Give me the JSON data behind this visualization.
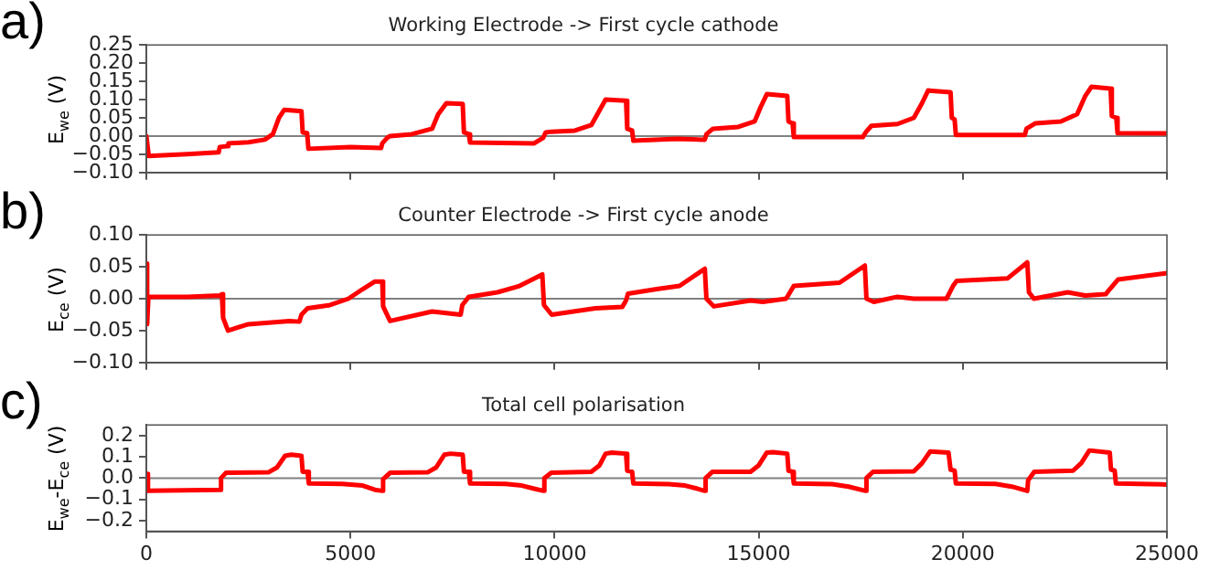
{
  "chart_data": [
    {
      "type": "line",
      "title": "Working Electrode -> First cycle cathode",
      "ylabel": "E$_{we}$ (V)",
      "annotations": [
        "a)"
      ],
      "grid": false,
      "legend": false,
      "marker": "none",
      "tick_labels": "y",
      "xlim": [
        0,
        25000
      ],
      "xticks": [
        0,
        5000,
        10000,
        15000,
        20000,
        25000
      ],
      "ylim": [
        -0.1,
        0.25
      ],
      "yticks": [
        {
          "value": -0.1,
          "label": "−0.10"
        },
        {
          "value": -0.05,
          "label": "−0.05"
        },
        {
          "value": 0,
          "label": "0.00"
        },
        {
          "value": 0.05,
          "label": "0.05"
        },
        {
          "value": 0.1,
          "label": "0.10"
        },
        {
          "value": 0.15,
          "label": "0.15"
        },
        {
          "value": 0.2,
          "label": "0.20"
        },
        {
          "value": 0.25,
          "label": "0.25"
        }
      ],
      "ref_lines": [
        {
          "axis": "y",
          "value": 0,
          "color": "#808080"
        }
      ],
      "x": [
        0,
        60,
        1000,
        1770,
        1800,
        1980,
        2010,
        2500,
        2900,
        3100,
        3250,
        3380,
        3600,
        3800,
        3830,
        3940,
        3970,
        5000,
        5750,
        5780,
        5900,
        5970,
        6500,
        7000,
        7150,
        7350,
        7750,
        7780,
        7900,
        7930,
        9500,
        9720,
        9780,
        9930,
        10500,
        10900,
        11100,
        11250,
        11750,
        11780,
        11900,
        11930,
        13000,
        13680,
        13720,
        13880,
        14500,
        14900,
        15050,
        15200,
        15700,
        15730,
        15830,
        15860,
        17550,
        17620,
        17760,
        18400,
        18800,
        19000,
        19150,
        19700,
        19730,
        19800,
        19830,
        21520,
        21560,
        21780,
        22400,
        22800,
        23000,
        23150,
        23620,
        23650,
        23760,
        23790,
        25000
      ],
      "series": [
        {
          "color": "#ff0000",
          "values": [
            0,
            -0.055,
            -0.05,
            -0.045,
            -0.03,
            -0.028,
            -0.02,
            -0.017,
            -0.01,
            0.005,
            0.05,
            0.072,
            0.07,
            0.068,
            0.01,
            0.008,
            -0.035,
            -0.03,
            -0.033,
            -0.02,
            -0.005,
            0,
            0.005,
            0.02,
            0.06,
            0.09,
            0.088,
            0.01,
            0.005,
            -0.018,
            -0.02,
            -0.005,
            0.01,
            0.012,
            0.015,
            0.03,
            0.07,
            0.1,
            0.097,
            0.02,
            0.015,
            -0.013,
            -0.008,
            -0.01,
            0.005,
            0.02,
            0.025,
            0.04,
            0.08,
            0.115,
            0.11,
            0.04,
            0.035,
            -0.003,
            -0.003,
            0.01,
            0.028,
            0.033,
            0.05,
            0.09,
            0.125,
            0.12,
            0.05,
            0.045,
            0.003,
            0.003,
            0.02,
            0.035,
            0.04,
            0.06,
            0.11,
            0.135,
            0.13,
            0.055,
            0.05,
            0.008,
            0.007
          ]
        }
      ]
    },
    {
      "type": "line",
      "title": "Counter Electrode -> First cycle anode",
      "ylabel": "E$_{ce}$ (V)",
      "annotations": [
        "b)"
      ],
      "grid": false,
      "legend": false,
      "marker": "none",
      "tick_labels": "y",
      "xlim": [
        0,
        25000
      ],
      "xticks": [
        0,
        5000,
        10000,
        15000,
        20000,
        25000
      ],
      "ylim": [
        -0.1,
        0.1
      ],
      "yticks": [
        {
          "value": -0.1,
          "label": "−0.10"
        },
        {
          "value": -0.05,
          "label": "−0.05"
        },
        {
          "value": 0,
          "label": "0.00"
        },
        {
          "value": 0.05,
          "label": "0.05"
        },
        {
          "value": 0.1,
          "label": "0.10"
        }
      ],
      "ref_lines": [
        {
          "axis": "y",
          "value": 0,
          "color": "#808080"
        }
      ],
      "x": [
        0,
        20,
        50,
        1000,
        1800,
        1850,
        1880,
        2000,
        2500,
        3500,
        3750,
        3800,
        3950,
        4500,
        4950,
        5300,
        5600,
        5780,
        5800,
        5970,
        7000,
        7700,
        7740,
        7900,
        8600,
        9140,
        9700,
        9740,
        9930,
        11000,
        11660,
        11750,
        11800,
        12500,
        13060,
        13680,
        13720,
        13900,
        14800,
        15100,
        15670,
        15720,
        15860,
        16980,
        17600,
        17640,
        17820,
        18400,
        18800,
        19600,
        19680,
        19760,
        19850,
        21100,
        21580,
        21620,
        21740,
        22570,
        23000,
        23500,
        23600,
        23800,
        25000
      ],
      "series": [
        {
          "color": "#ff0000",
          "values": [
            0.055,
            -0.04,
            0.003,
            0.003,
            0.005,
            0.007,
            -0.03,
            -0.05,
            -0.04,
            -0.035,
            -0.036,
            -0.025,
            -0.015,
            -0.01,
            0,
            0.015,
            0.027,
            0.027,
            -0.012,
            -0.035,
            -0.02,
            -0.025,
            -0.01,
            0.003,
            0.01,
            0.02,
            0.038,
            -0.01,
            -0.025,
            -0.015,
            -0.013,
            -0.003,
            0.008,
            0.015,
            0.02,
            0.047,
            0,
            -0.012,
            -0.003,
            -0.005,
            0,
            0.005,
            0.02,
            0.025,
            0.052,
            0,
            -0.005,
            0.003,
            0,
            0,
            0.01,
            0.02,
            0.028,
            0.032,
            0.057,
            0.01,
            0,
            0.01,
            0.005,
            0.007,
            0.015,
            0.03,
            0.04
          ]
        }
      ]
    },
    {
      "type": "line",
      "title": "Total cell polarisation",
      "ylabel": "E$_{we}$-E$_{ce}$ (V)",
      "annotations": [
        "c)"
      ],
      "grid": false,
      "legend": false,
      "marker": "none",
      "xlim": [
        0,
        25000
      ],
      "xticks": [
        0,
        5000,
        10000,
        15000,
        20000,
        25000
      ],
      "ylim": [
        -0.25,
        0.25
      ],
      "yticks": [
        {
          "value": -0.2,
          "label": "−0.2"
        },
        {
          "value": -0.1,
          "label": "−0.1"
        },
        {
          "value": 0,
          "label": "0.0"
        },
        {
          "value": 0.1,
          "label": "0.1"
        },
        {
          "value": 0.2,
          "label": "0.2"
        }
      ],
      "ref_lines": [
        {
          "axis": "y",
          "value": 0,
          "color": "#808080"
        }
      ],
      "x": [
        0,
        40,
        1800,
        1830,
        1950,
        3000,
        3200,
        3400,
        3550,
        3800,
        3830,
        3950,
        3980,
        4800,
        5300,
        5600,
        5780,
        5800,
        5970,
        6900,
        7100,
        7300,
        7450,
        7750,
        7780,
        7900,
        7930,
        8800,
        9200,
        9500,
        9730,
        9750,
        9920,
        10900,
        11100,
        11250,
        11400,
        11750,
        11780,
        11900,
        11930,
        12800,
        13200,
        13500,
        13680,
        13700,
        13870,
        14800,
        15000,
        15200,
        15350,
        15700,
        15730,
        15830,
        15860,
        16800,
        17200,
        17620,
        17640,
        17800,
        18800,
        19000,
        19200,
        19650,
        19700,
        19800,
        19830,
        20800,
        21200,
        21580,
        21600,
        21750,
        22700,
        22900,
        23100,
        23600,
        23630,
        23720,
        23750,
        25000
      ],
      "series": [
        {
          "color": "#ff0000",
          "values": [
            0.02,
            -0.06,
            -0.055,
            0,
            0.025,
            0.028,
            0.05,
            0.105,
            0.11,
            0.105,
            0.03,
            0.03,
            -0.025,
            -0.027,
            -0.035,
            -0.055,
            -0.06,
            -0.005,
            0.025,
            0.028,
            0.05,
            0.11,
            0.115,
            0.11,
            0.03,
            0.03,
            -0.025,
            -0.027,
            -0.035,
            -0.05,
            -0.06,
            0,
            0.025,
            0.03,
            0.06,
            0.115,
            0.12,
            0.115,
            0.035,
            0.03,
            -0.025,
            -0.028,
            -0.035,
            -0.05,
            -0.06,
            0,
            0.03,
            0.03,
            0.06,
            0.12,
            0.122,
            0.115,
            0.035,
            0.03,
            -0.025,
            -0.028,
            -0.04,
            -0.06,
            0,
            0.03,
            0.032,
            0.07,
            0.125,
            0.12,
            0.04,
            0.035,
            -0.025,
            -0.027,
            -0.04,
            -0.06,
            -0.01,
            0.03,
            0.035,
            0.07,
            0.13,
            0.12,
            0.04,
            0.035,
            -0.025,
            -0.03
          ]
        }
      ]
    }
  ]
}
